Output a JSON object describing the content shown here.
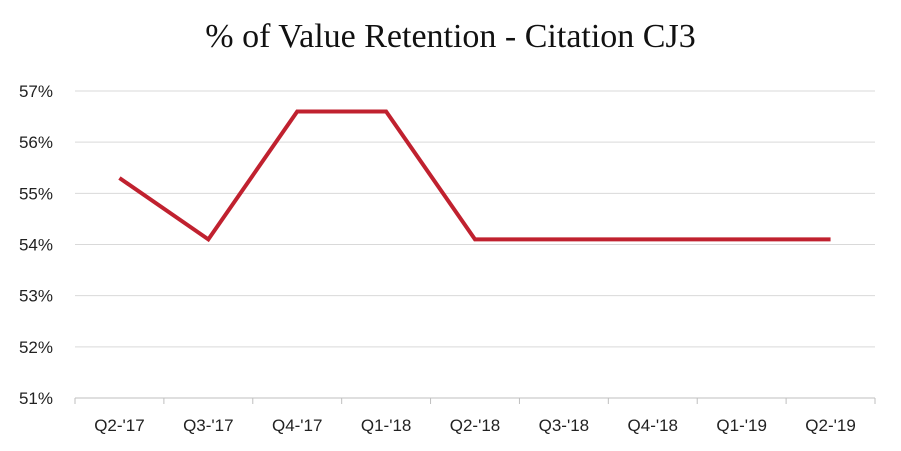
{
  "chart_data": {
    "type": "line",
    "title": "% of Value Retention - Citation CJ3",
    "xlabel": "",
    "ylabel": "",
    "categories": [
      "Q2-'17",
      "Q3-'17",
      "Q4-'17",
      "Q1-'18",
      "Q2-'18",
      "Q3-'18",
      "Q4-'18",
      "Q1-'19",
      "Q2-'19"
    ],
    "series": [
      {
        "name": "",
        "color": "#c0212f",
        "values": [
          55.3,
          54.1,
          56.6,
          56.6,
          54.1,
          54.1,
          54.1,
          54.1,
          54.1
        ]
      }
    ],
    "ylim": [
      51,
      57
    ],
    "yticks": [
      51,
      52,
      53,
      54,
      55,
      56,
      57
    ],
    "ytick_labels": [
      "51%",
      "52%",
      "53%",
      "54%",
      "55%",
      "56%",
      "57%"
    ],
    "grid": true,
    "legend": "none"
  }
}
